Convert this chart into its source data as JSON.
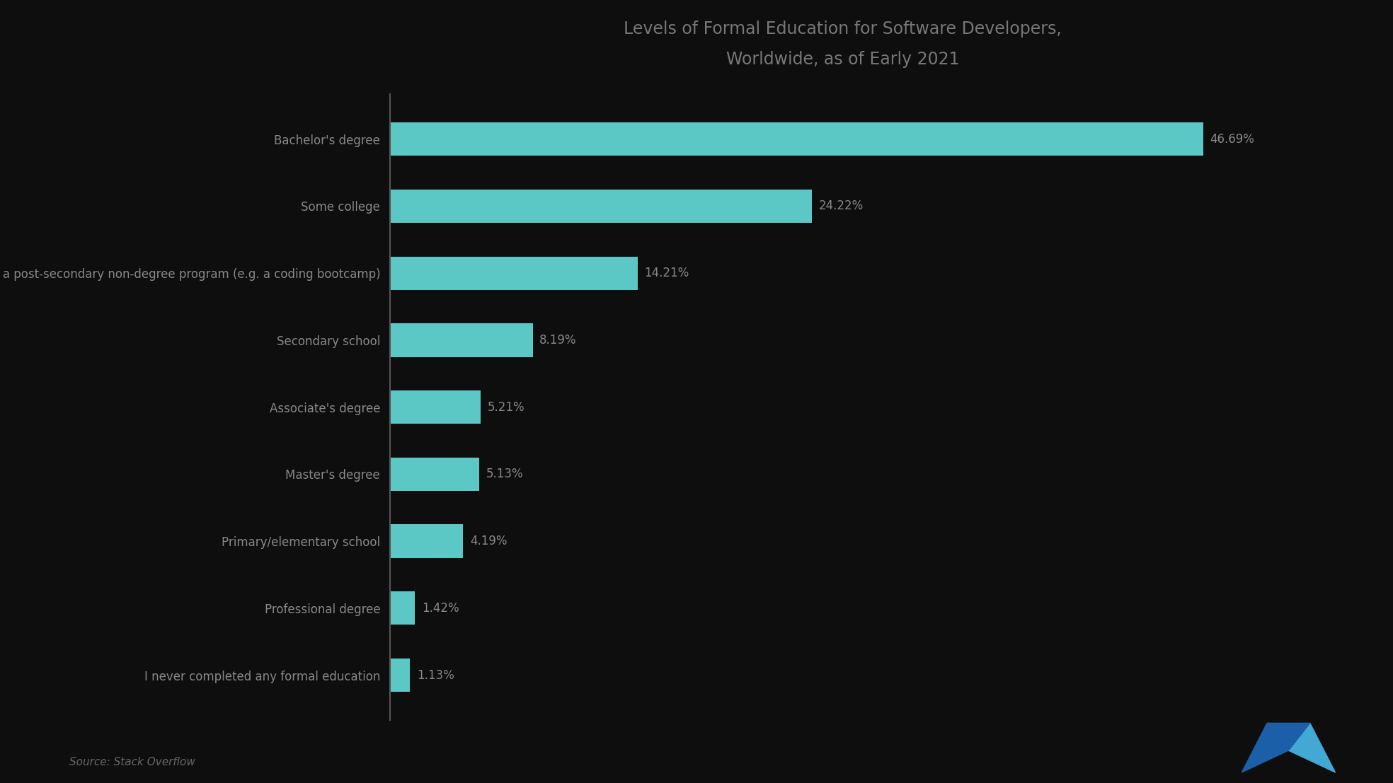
{
  "title_line1": "Levels of Formal Education for Software Developers,",
  "title_line2": "Worldwide, as of Early 2021",
  "categories": [
    "Bachelor's degree",
    "Some college",
    "I was a post-secondary non-degree program (e.g. a coding bootcamp)",
    "Secondary school",
    "Associate's degree",
    "Master's degree",
    "Primary/elementary school",
    "Professional degree",
    "I never completed any formal education"
  ],
  "values": [
    46.69,
    24.22,
    14.21,
    8.19,
    5.21,
    5.13,
    4.19,
    1.42,
    1.13
  ],
  "bar_color": "#5BC8C5",
  "background_color": "#0e0e0e",
  "text_color": "#888888",
  "title_color": "#777777",
  "value_labels": [
    "46.69%",
    "24.22%",
    "14.21%",
    "8.19%",
    "5.21%",
    "5.13%",
    "4.19%",
    "1.42%",
    "1.13%"
  ],
  "source_text": "Source: Stack Overflow",
  "xlim": [
    0,
    52
  ]
}
